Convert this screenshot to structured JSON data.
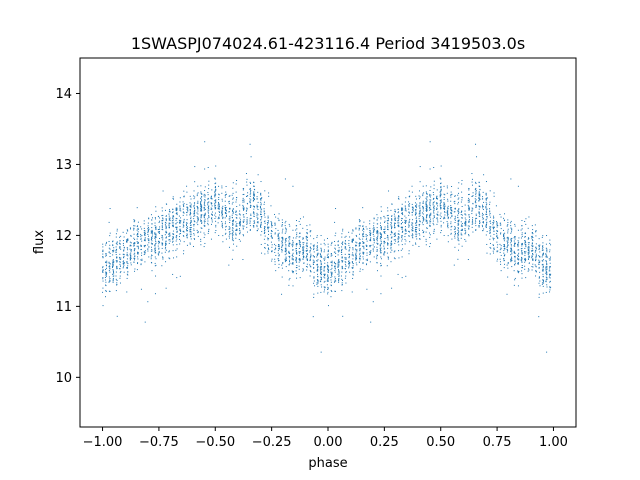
{
  "chart_data": {
    "type": "scatter",
    "title": "1SWASPJ074024.61-423116.4 Period 3419503.0s",
    "xlabel": "phase",
    "ylabel": "flux",
    "xlim": [
      -1.1,
      1.1
    ],
    "ylim": [
      9.3,
      14.5
    ],
    "x_ticks": [
      -1.0,
      -0.75,
      -0.5,
      -0.25,
      0.0,
      0.25,
      0.5,
      0.75,
      1.0
    ],
    "x_tick_labels": [
      "−1.00",
      "−0.75",
      "−0.50",
      "−0.25",
      "0.00",
      "0.25",
      "0.50",
      "0.75",
      "1.00"
    ],
    "y_ticks": [
      10,
      11,
      12,
      13,
      14
    ],
    "y_tick_labels": [
      "10",
      "11",
      "12",
      "13",
      "14"
    ],
    "grid": false,
    "marker_color": "#1f77b4",
    "series": [
      {
        "name": "",
        "profile_phase": [
          0.0,
          0.05,
          0.1,
          0.15,
          0.2,
          0.25,
          0.3,
          0.35,
          0.4,
          0.45,
          0.5,
          0.55,
          0.6,
          0.65,
          0.7,
          0.75,
          0.8,
          0.85,
          0.9,
          0.95,
          1.0
        ],
        "profile_flux": [
          11.55,
          11.65,
          11.72,
          11.85,
          11.95,
          12.0,
          12.1,
          12.2,
          12.25,
          12.35,
          12.45,
          12.3,
          12.2,
          12.45,
          12.35,
          12.05,
          11.85,
          11.75,
          11.85,
          11.6,
          11.5
        ]
      }
    ]
  }
}
